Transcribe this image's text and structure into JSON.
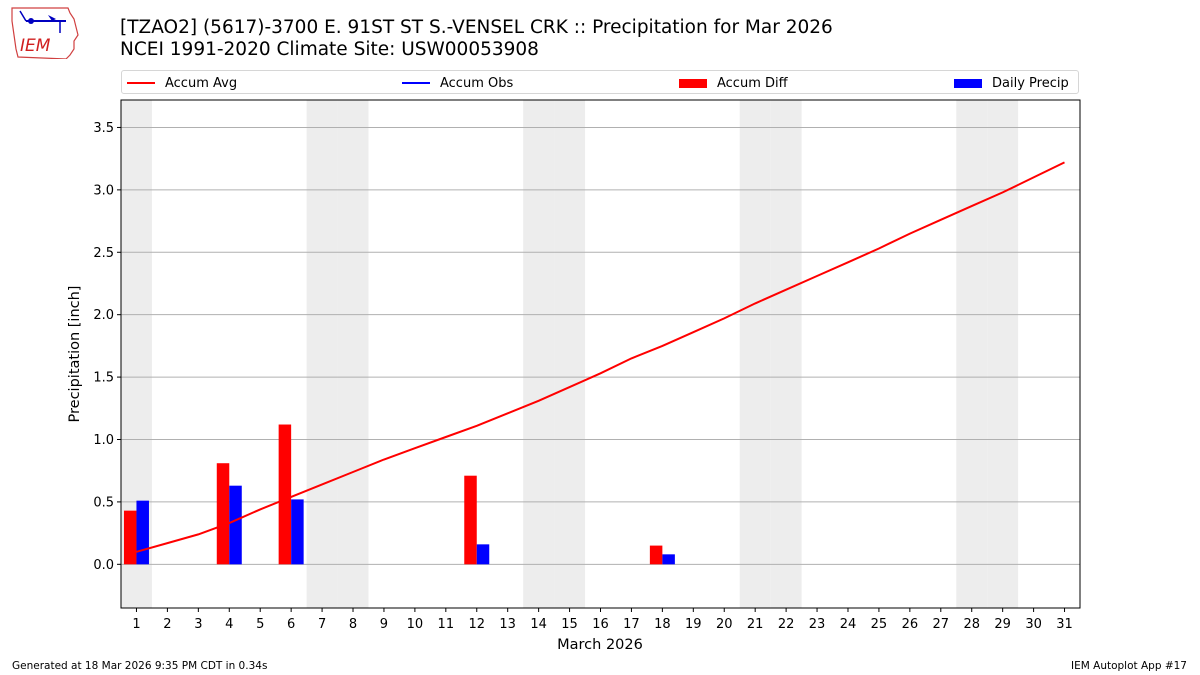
{
  "header": {
    "title_line1": "[TZAO2] (5617)-3700 E. 91ST ST S.-VENSEL CRK :: Precipitation for Mar 2026",
    "title_line2": "NCEI 1991-2020 Climate Site: USW00053908",
    "logo_text": "IEM"
  },
  "legend": {
    "items": [
      {
        "label": "Accum Avg",
        "kind": "line",
        "color": "#ff0000"
      },
      {
        "label": "Accum Obs",
        "kind": "line",
        "color": "#0000ff"
      },
      {
        "label": "Accum Diff",
        "kind": "patch",
        "color": "#ff0000"
      },
      {
        "label": "Daily Precip",
        "kind": "patch",
        "color": "#0000ff"
      }
    ]
  },
  "footer": {
    "generated": "Generated at 18 Mar 2026 9:35 PM CDT in 0.34s",
    "app": "IEM Autoplot App #17"
  },
  "chart_data": {
    "type": "bar",
    "title": "[TZAO2] (5617)-3700 E. 91ST ST S.-VENSEL CRK :: Precipitation for Mar 2026",
    "subtitle": "NCEI 1991-2020 Climate Site: USW00053908",
    "xlabel": "March 2026",
    "ylabel": "Precipitation [inch]",
    "ylim": [
      -0.35,
      3.72
    ],
    "xlim": [
      0.5,
      31.5
    ],
    "yticks": [
      0.0,
      0.5,
      1.0,
      1.5,
      2.0,
      2.5,
      3.0,
      3.5
    ],
    "ytick_labels": [
      "0.0",
      "0.5",
      "1.0",
      "1.5",
      "2.0",
      "2.5",
      "3.0",
      "3.5"
    ],
    "categories": [
      "1",
      "2",
      "3",
      "4",
      "5",
      "6",
      "7",
      "8",
      "9",
      "10",
      "11",
      "12",
      "13",
      "14",
      "15",
      "16",
      "17",
      "18",
      "19",
      "20",
      "21",
      "22",
      "23",
      "24",
      "25",
      "26",
      "27",
      "28",
      "29",
      "30",
      "31"
    ],
    "grid": "y",
    "legend_position": "top, above axes",
    "shaded_days": [
      1,
      7,
      8,
      14,
      15,
      21,
      22,
      28,
      29
    ],
    "series": [
      {
        "name": "Accum Avg",
        "type": "line",
        "color": "#ff0000",
        "values": [
          0.1,
          0.17,
          0.24,
          0.33,
          0.44,
          0.54,
          0.64,
          0.74,
          0.84,
          0.93,
          1.02,
          1.11,
          1.21,
          1.31,
          1.42,
          1.53,
          1.65,
          1.75,
          1.86,
          1.97,
          2.09,
          2.2,
          2.31,
          2.42,
          2.53,
          2.65,
          2.76,
          2.87,
          2.98,
          3.1,
          3.22
        ]
      },
      {
        "name": "Accum Obs",
        "type": "line",
        "color": "#0000ff",
        "values": []
      },
      {
        "name": "Accum Diff",
        "type": "bar",
        "color": "#ff0000",
        "points": [
          {
            "day": 1,
            "value": 0.43
          },
          {
            "day": 4,
            "value": 0.81
          },
          {
            "day": 6,
            "value": 1.12
          },
          {
            "day": 12,
            "value": 0.71
          },
          {
            "day": 18,
            "value": 0.15
          }
        ]
      },
      {
        "name": "Daily Precip",
        "type": "bar",
        "color": "#0000ff",
        "points": [
          {
            "day": 1,
            "value": 0.51
          },
          {
            "day": 4,
            "value": 0.63
          },
          {
            "day": 6,
            "value": 0.52
          },
          {
            "day": 12,
            "value": 0.16
          },
          {
            "day": 18,
            "value": 0.08
          }
        ]
      }
    ]
  }
}
